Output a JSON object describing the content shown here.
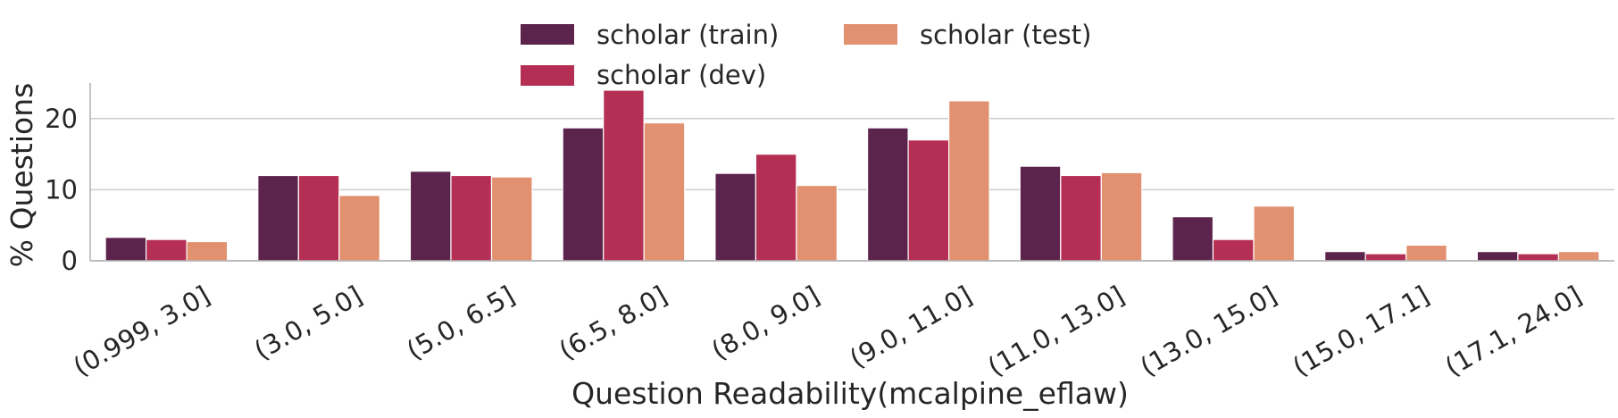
{
  "chart_data": {
    "type": "bar",
    "xlabel": "Question Readability(mcalpine_eflaw)",
    "ylabel": "% Questions",
    "ylim": [
      0,
      25
    ],
    "yticks": [
      0,
      10,
      20
    ],
    "grid": "horizontal",
    "legend_position": "top-center",
    "categories": [
      "(0.999, 3.0]",
      "(3.0, 5.0]",
      "(5.0, 6.5]",
      "(6.5, 8.0]",
      "(8.0, 9.0]",
      "(9.0, 11.0]",
      "(11.0, 13.0]",
      "(13.0, 15.0]",
      "(15.0, 17.1]",
      "(17.1, 24.0]"
    ],
    "series": [
      {
        "name": "scholar (train)",
        "color": "#5c244d",
        "values": [
          3.3,
          12.0,
          12.6,
          18.7,
          12.3,
          18.7,
          13.3,
          6.2,
          1.3,
          1.3
        ]
      },
      {
        "name": "scholar (dev)",
        "color": "#b52f55",
        "values": [
          3.0,
          12.0,
          12.0,
          24.0,
          15.0,
          17.0,
          12.0,
          3.0,
          1.0,
          1.0
        ]
      },
      {
        "name": "scholar (test)",
        "color": "#e29170",
        "values": [
          2.7,
          9.2,
          11.8,
          19.4,
          10.6,
          22.5,
          12.4,
          7.7,
          2.2,
          1.3
        ]
      }
    ]
  }
}
